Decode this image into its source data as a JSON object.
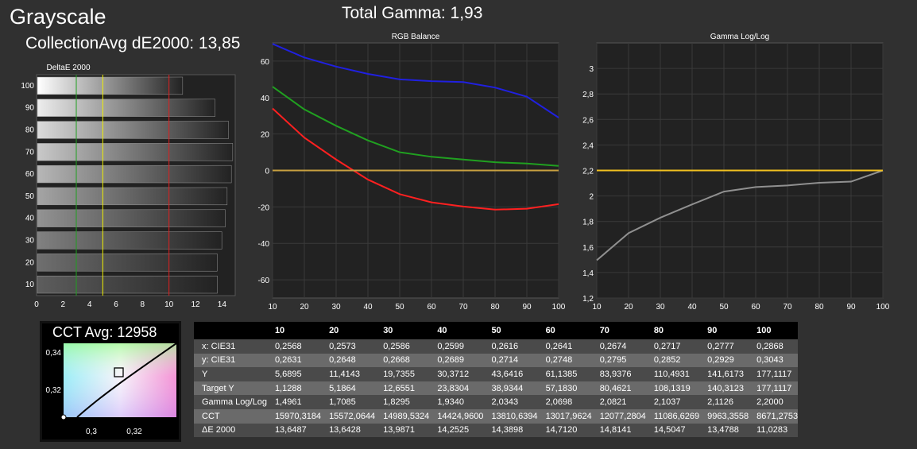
{
  "header": {
    "title": "Grayscale",
    "collection_avg": "CollectionAvg dE2000: 13,85",
    "total_gamma": "Total Gamma: 1,93"
  },
  "cct_panel": {
    "label": "CCT Avg: 12958",
    "y_ticks": [
      "0,34",
      "0,32"
    ],
    "x_ticks": [
      "0,3",
      "0,32"
    ]
  },
  "chart_data": [
    {
      "type": "bar",
      "title": "DeltaE 2000",
      "orientation": "horizontal",
      "categories": [
        "100",
        "90",
        "80",
        "70",
        "60",
        "50",
        "40",
        "30",
        "20",
        "10"
      ],
      "values": [
        11.03,
        13.48,
        14.5,
        14.81,
        14.71,
        14.39,
        14.25,
        13.99,
        13.64,
        13.65
      ],
      "x_ticks": [
        "0",
        "2",
        "4",
        "6",
        "8",
        "10",
        "12",
        "14"
      ],
      "xlim": [
        0,
        15
      ],
      "threshold_lines": [
        {
          "value": 3,
          "color": "#20a020"
        },
        {
          "value": 5,
          "color": "#f0f000"
        },
        {
          "value": 10,
          "color": "#e02020"
        }
      ]
    },
    {
      "type": "line",
      "title": "RGB Balance",
      "x": [
        10,
        20,
        30,
        40,
        50,
        60,
        70,
        80,
        90,
        100
      ],
      "x_ticks": [
        "10",
        "20",
        "30",
        "40",
        "50",
        "60",
        "70",
        "80",
        "90",
        "100"
      ],
      "y_ticks": [
        "60",
        "40",
        "20",
        "0",
        "-20",
        "-40",
        "-60"
      ],
      "xlim": [
        10,
        100
      ],
      "ylim": [
        -70,
        70
      ],
      "grid": true,
      "series": [
        {
          "color": "#ff2020",
          "values": [
            34,
            18,
            6,
            -5,
            -13,
            -17.5,
            -19.8,
            -21.5,
            -21,
            -18.5
          ]
        },
        {
          "color": "#20a020",
          "values": [
            46,
            33.5,
            24.5,
            16.5,
            10,
            7.5,
            6,
            4.5,
            3.8,
            2.5
          ]
        },
        {
          "color": "#2020e0",
          "values": [
            69.5,
            62,
            57,
            53,
            50,
            49,
            48.5,
            45.5,
            40.5,
            29
          ]
        },
        {
          "color": "#c8a040",
          "values": [
            0,
            0,
            0,
            0,
            0,
            0,
            0,
            0,
            0,
            0
          ]
        }
      ]
    },
    {
      "type": "line",
      "title": "Gamma Log/Log",
      "x": [
        10,
        20,
        30,
        40,
        50,
        60,
        70,
        80,
        90,
        100
      ],
      "x_ticks": [
        "10",
        "20",
        "30",
        "40",
        "50",
        "60",
        "70",
        "80",
        "90",
        "100"
      ],
      "y_ticks": [
        "3",
        "2,8",
        "2,6",
        "2,4",
        "2,2",
        "2",
        "1,8",
        "1,6",
        "1,4",
        "1,2"
      ],
      "xlim": [
        10,
        100
      ],
      "ylim": [
        1.2,
        3.2
      ],
      "grid": true,
      "series": [
        {
          "color": "#909090",
          "values": [
            1.4961,
            1.7085,
            1.8295,
            1.934,
            2.0343,
            2.0698,
            2.0821,
            2.1037,
            2.1126,
            2.2
          ]
        },
        {
          "color": "#f0c020",
          "values": [
            2.2,
            2.2,
            2.2,
            2.2,
            2.2,
            2.2,
            2.2,
            2.2,
            2.2,
            2.2
          ]
        }
      ]
    },
    {
      "type": "table",
      "columns": [
        "10",
        "20",
        "30",
        "40",
        "50",
        "60",
        "70",
        "80",
        "90",
        "100"
      ],
      "rows": [
        {
          "label": "x: CIE31",
          "values": [
            "0,2568",
            "0,2573",
            "0,2586",
            "0,2599",
            "0,2616",
            "0,2641",
            "0,2674",
            "0,2717",
            "0,2777",
            "0,2868"
          ]
        },
        {
          "label": "y: CIE31",
          "values": [
            "0,2631",
            "0,2648",
            "0,2668",
            "0,2689",
            "0,2714",
            "0,2748",
            "0,2795",
            "0,2852",
            "0,2929",
            "0,3043"
          ]
        },
        {
          "label": "Y",
          "values": [
            "5,6895",
            "11,4143",
            "19,7355",
            "30,3712",
            "43,6416",
            "61,1385",
            "83,9376",
            "110,4931",
            "141,6173",
            "177,1117"
          ]
        },
        {
          "label": "Target Y",
          "values": [
            "1,1288",
            "5,1864",
            "12,6551",
            "23,8304",
            "38,9344",
            "57,1830",
            "80,4621",
            "108,1319",
            "140,3123",
            "177,1117"
          ]
        },
        {
          "label": "Gamma Log/Log",
          "values": [
            "1,4961",
            "1,7085",
            "1,8295",
            "1,9340",
            "2,0343",
            "2,0698",
            "2,0821",
            "2,1037",
            "2,1126",
            "2,2000"
          ]
        },
        {
          "label": "CCT",
          "values": [
            "15970,3184",
            "15572,0644",
            "14989,5324",
            "14424,9600",
            "13810,6394",
            "13017,9624",
            "12077,2804",
            "11086,6269",
            "9963,3558",
            "8671,2753"
          ]
        },
        {
          "label": "ΔE 2000",
          "values": [
            "13,6487",
            "13,6428",
            "13,9871",
            "14,2525",
            "14,3898",
            "14,7120",
            "14,8141",
            "14,5047",
            "13,4788",
            "11,0283"
          ]
        }
      ]
    }
  ]
}
